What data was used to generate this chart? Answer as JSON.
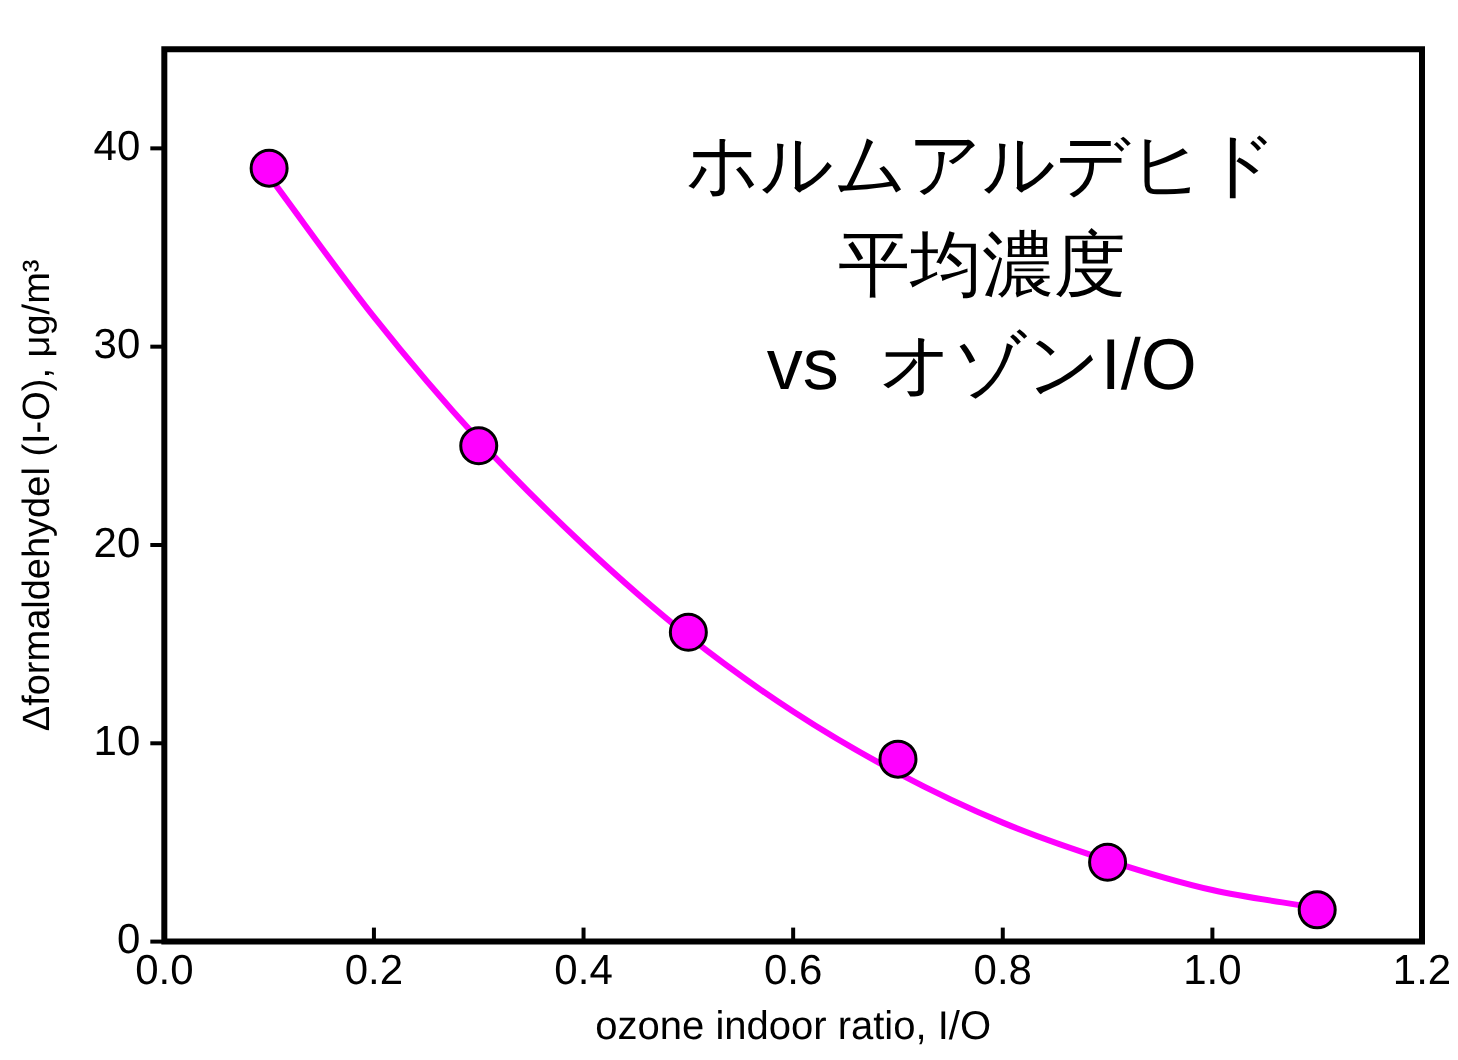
{
  "chart_data": {
    "type": "scatter",
    "xlabel": "ozone indoor ratio, I/O",
    "ylabel": "Δformaldehydel (I-O), μg/m³",
    "annotations": [
      "ホルムアルデヒド",
      "平均濃度",
      "vs  オゾンI/O"
    ],
    "xlim": [
      0,
      1.2
    ],
    "xticks": [
      {
        "value": 0,
        "label": "0.0"
      },
      0.2,
      0.4,
      0.6,
      0.8,
      {
        "value": 1,
        "label": "1.0"
      },
      1.2
    ],
    "ylim": [
      0,
      45
    ],
    "yticks": [
      0,
      10,
      20,
      30,
      40
    ],
    "grid": false,
    "legend": false,
    "marker": "circle",
    "series": [
      {
        "type": "line",
        "color": "#ff00ff",
        "marker": "none",
        "line_style": "solid",
        "x": [
          0.1,
          0.2,
          0.3,
          0.4,
          0.5,
          0.6,
          0.7,
          0.8,
          0.9,
          1.0,
          1.1
        ],
        "values": [
          38.6,
          31.5,
          25.3,
          20.0,
          15.4,
          11.6,
          8.5,
          6.0,
          4.1,
          2.6,
          1.7
        ]
      },
      {
        "color": "#ff00ff",
        "x": [
          0.1,
          0.3,
          0.5,
          0.7,
          0.9,
          1.1
        ],
        "values": [
          39,
          25,
          15.6,
          9.2,
          4,
          1.6
        ]
      }
    ]
  }
}
